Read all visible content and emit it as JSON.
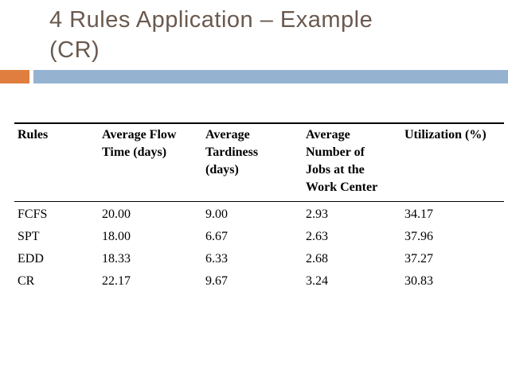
{
  "title": {
    "line1": "4 Rules Application – Example",
    "line2": "(CR)"
  },
  "colors": {
    "title_text": "#6A594E",
    "accent_orange": "#DF7E3E",
    "accent_blue": "#95B3D1",
    "table_text": "#000000"
  },
  "table": {
    "columns": [
      "Rules",
      "Average Flow\nTime (days)",
      "Average\nTardiness\n(days)",
      "Average\nNumber of\nJobs at the\nWork Center",
      "Utilization (%)"
    ],
    "rows": [
      {
        "cells": [
          "FCFS",
          "20.00",
          "9.00",
          "2.93",
          "34.17"
        ]
      },
      {
        "cells": [
          "SPT",
          "18.00",
          "6.67",
          "2.63",
          "37.96"
        ]
      },
      {
        "cells": [
          "EDD",
          "18.33",
          "6.33",
          "2.68",
          "37.27"
        ]
      },
      {
        "cells": [
          "CR",
          "22.17",
          "9.67",
          "3.24",
          "30.83"
        ]
      }
    ]
  },
  "chart_data": {
    "type": "table",
    "title": "4 Rules Application – Example (CR)",
    "categories": [
      "FCFS",
      "SPT",
      "EDD",
      "CR"
    ],
    "series": [
      {
        "name": "Average Flow Time (days)",
        "values": [
          20.0,
          18.0,
          18.33,
          22.17
        ]
      },
      {
        "name": "Average Tardiness (days)",
        "values": [
          9.0,
          6.67,
          6.33,
          9.67
        ]
      },
      {
        "name": "Average Number of Jobs at the Work Center",
        "values": [
          2.93,
          2.63,
          2.68,
          3.24
        ]
      },
      {
        "name": "Utilization (%)",
        "values": [
          34.17,
          37.96,
          37.27,
          30.83
        ]
      }
    ]
  }
}
